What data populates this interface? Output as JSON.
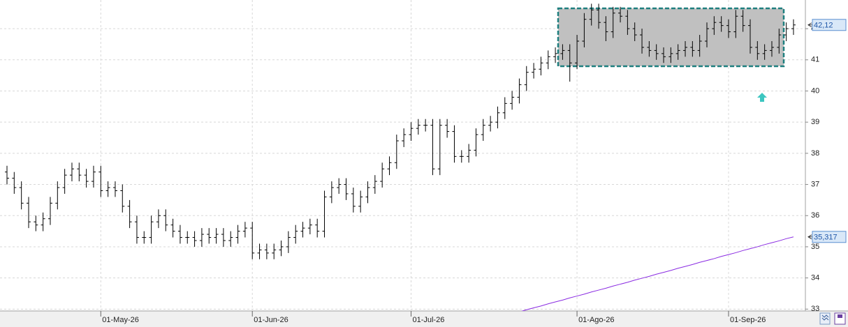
{
  "chart_data": {
    "type": "ohlc",
    "color": "#000000",
    "ma_color": "#8a2be2",
    "categories": [
      null,
      null,
      null,
      null,
      null,
      null,
      null,
      null,
      null,
      null,
      null,
      null,
      null,
      "01-May-26",
      null,
      null,
      null,
      null,
      null,
      null,
      null,
      null,
      null,
      null,
      null,
      null,
      null,
      null,
      null,
      null,
      null,
      null,
      null,
      null,
      "01-Jun-26",
      null,
      null,
      null,
      null,
      null,
      null,
      null,
      null,
      null,
      null,
      null,
      null,
      null,
      null,
      null,
      null,
      null,
      null,
      null,
      null,
      null,
      "01-Jul-26",
      null,
      null,
      null,
      null,
      null,
      null,
      null,
      null,
      null,
      null,
      null,
      null,
      null,
      null,
      null,
      null,
      null,
      null,
      null,
      null,
      null,
      null,
      "01-Ago-26",
      null,
      null,
      null,
      null,
      null,
      null,
      null,
      null,
      null,
      null,
      null,
      null,
      null,
      null,
      null,
      null,
      null,
      null,
      null,
      null,
      "01-Sep-26",
      null,
      null,
      null,
      null,
      null,
      null,
      null,
      null,
      null
    ],
    "open": [
      37.4,
      37.2,
      36.9,
      36.4,
      35.8,
      35.7,
      35.9,
      36.4,
      36.9,
      37.3,
      37.5,
      37.3,
      37.1,
      37.4,
      36.8,
      36.9,
      36.8,
      36.3,
      35.8,
      35.3,
      35.3,
      35.8,
      36.0,
      35.7,
      35.5,
      35.3,
      35.3,
      35.2,
      35.4,
      35.3,
      35.4,
      35.2,
      35.3,
      35.5,
      35.6,
      34.8,
      34.9,
      34.8,
      34.9,
      35.0,
      35.3,
      35.5,
      35.6,
      35.7,
      35.5,
      36.6,
      36.9,
      37.0,
      36.7,
      36.3,
      36.6,
      36.9,
      37.1,
      37.5,
      37.7,
      38.4,
      38.6,
      38.8,
      38.9,
      38.9,
      37.5,
      38.9,
      38.7,
      37.9,
      37.9,
      38.1,
      38.6,
      38.9,
      39.0,
      39.3,
      39.6,
      39.8,
      40.2,
      40.6,
      40.7,
      40.9,
      41.1,
      41.2,
      41.3,
      40.9,
      41.6,
      42.3,
      42.6,
      42.2,
      41.9,
      42.5,
      42.4,
      42.0,
      41.8,
      41.4,
      41.3,
      41.2,
      41.1,
      41.2,
      41.3,
      41.4,
      41.3,
      41.6,
      42.0,
      42.2,
      42.1,
      41.9,
      42.4,
      42.1,
      41.4,
      41.2,
      41.3,
      41.4,
      41.8,
      42.0
    ],
    "high": [
      37.6,
      37.4,
      37.1,
      36.6,
      36.0,
      36.1,
      36.6,
      37.1,
      37.5,
      37.7,
      37.7,
      37.5,
      37.6,
      37.6,
      37.1,
      37.1,
      37.0,
      36.5,
      36.0,
      35.5,
      36.0,
      36.2,
      36.2,
      35.9,
      35.7,
      35.5,
      35.5,
      35.6,
      35.6,
      35.6,
      35.6,
      35.5,
      35.7,
      35.8,
      35.8,
      35.1,
      35.1,
      35.1,
      35.2,
      35.5,
      35.7,
      35.8,
      35.9,
      35.9,
      36.8,
      37.1,
      37.2,
      37.2,
      36.9,
      36.8,
      37.1,
      37.3,
      37.7,
      37.9,
      38.6,
      38.8,
      39.0,
      39.1,
      39.1,
      39.1,
      39.1,
      39.1,
      38.9,
      38.1,
      38.3,
      38.8,
      39.1,
      39.2,
      39.5,
      39.8,
      40.0,
      40.4,
      40.8,
      40.9,
      41.1,
      41.3,
      41.4,
      41.5,
      41.5,
      41.8,
      42.5,
      42.8,
      42.8,
      42.4,
      42.7,
      42.7,
      42.6,
      42.2,
      42.0,
      41.6,
      41.5,
      41.4,
      41.4,
      41.5,
      41.6,
      41.6,
      41.8,
      42.2,
      42.4,
      42.4,
      42.3,
      42.6,
      42.6,
      42.3,
      41.6,
      41.5,
      41.6,
      42.0,
      42.2,
      42.3
    ],
    "low": [
      37.0,
      36.7,
      36.2,
      35.6,
      35.5,
      35.5,
      35.7,
      36.2,
      36.7,
      37.1,
      37.1,
      36.9,
      36.9,
      36.6,
      36.6,
      36.6,
      36.1,
      35.6,
      35.1,
      35.1,
      35.1,
      35.6,
      35.5,
      35.3,
      35.1,
      35.1,
      35.0,
      35.0,
      35.1,
      35.1,
      35.0,
      35.0,
      35.1,
      35.3,
      34.6,
      34.6,
      34.6,
      34.6,
      34.7,
      34.8,
      35.1,
      35.3,
      35.4,
      35.3,
      35.3,
      36.4,
      36.7,
      36.5,
      36.1,
      36.1,
      36.4,
      36.7,
      36.9,
      37.3,
      37.5,
      38.2,
      38.4,
      38.6,
      38.7,
      37.3,
      37.3,
      38.5,
      37.7,
      37.7,
      37.7,
      37.9,
      38.4,
      38.7,
      38.8,
      39.1,
      39.4,
      39.6,
      40.0,
      40.4,
      40.5,
      40.7,
      40.9,
      41.0,
      40.3,
      40.7,
      41.4,
      42.1,
      42.0,
      41.6,
      41.7,
      42.2,
      41.8,
      41.6,
      41.2,
      41.1,
      41.0,
      40.9,
      40.9,
      41.0,
      41.1,
      41.1,
      41.1,
      41.4,
      41.8,
      41.9,
      41.7,
      41.7,
      41.9,
      41.2,
      41.0,
      41.0,
      41.1,
      41.2,
      41.6,
      41.8
    ],
    "close": [
      37.2,
      36.9,
      36.4,
      35.8,
      35.7,
      35.9,
      36.4,
      36.9,
      37.3,
      37.5,
      37.3,
      37.1,
      37.4,
      36.8,
      36.9,
      36.8,
      36.3,
      35.8,
      35.3,
      35.3,
      35.8,
      36.0,
      35.7,
      35.5,
      35.3,
      35.3,
      35.2,
      35.4,
      35.3,
      35.4,
      35.2,
      35.3,
      35.5,
      35.6,
      34.8,
      34.9,
      34.8,
      34.9,
      35.0,
      35.3,
      35.5,
      35.6,
      35.7,
      35.5,
      36.6,
      36.9,
      37.0,
      36.7,
      36.3,
      36.6,
      36.9,
      37.1,
      37.5,
      37.7,
      38.4,
      38.6,
      38.8,
      38.9,
      38.9,
      37.5,
      38.9,
      38.7,
      37.9,
      37.9,
      38.1,
      38.6,
      38.9,
      39.0,
      39.3,
      39.6,
      39.8,
      40.2,
      40.6,
      40.7,
      40.9,
      41.1,
      41.2,
      41.3,
      40.9,
      41.6,
      42.3,
      42.6,
      42.2,
      41.9,
      42.5,
      42.4,
      42.0,
      41.8,
      41.4,
      41.3,
      41.2,
      41.1,
      41.2,
      41.3,
      41.4,
      41.3,
      41.6,
      42.0,
      42.2,
      42.1,
      41.9,
      42.4,
      42.1,
      41.4,
      41.2,
      41.3,
      41.4,
      41.8,
      42.0,
      42.12
    ],
    "ma": [
      null,
      null,
      null,
      null,
      null,
      null,
      null,
      null,
      null,
      null,
      null,
      null,
      null,
      null,
      null,
      null,
      null,
      null,
      null,
      null,
      null,
      null,
      null,
      null,
      null,
      null,
      null,
      null,
      null,
      null,
      null,
      null,
      null,
      null,
      null,
      null,
      null,
      null,
      null,
      null,
      null,
      null,
      null,
      null,
      null,
      null,
      null,
      null,
      null,
      null,
      null,
      null,
      null,
      null,
      null,
      null,
      null,
      null,
      null,
      null,
      null,
      null,
      null,
      null,
      null,
      null,
      null,
      null,
      null,
      null,
      32.85,
      32.91,
      32.98,
      33.04,
      33.1,
      33.17,
      33.23,
      33.29,
      33.36,
      33.42,
      33.48,
      33.55,
      33.61,
      33.67,
      33.74,
      33.8,
      33.86,
      33.93,
      33.99,
      34.05,
      34.12,
      34.18,
      34.24,
      34.31,
      34.37,
      34.43,
      34.5,
      34.56,
      34.62,
      34.69,
      34.75,
      34.81,
      34.88,
      34.94,
      35.0,
      35.07,
      35.13,
      35.19,
      35.26,
      35.317
    ],
    "last_price": {
      "value": 42.12,
      "label": "42,12"
    },
    "ma_last": {
      "value": 35.317,
      "label": "35,317"
    },
    "ylim": [
      32.94,
      42.92
    ],
    "yticks": [
      33,
      34,
      35,
      36,
      37,
      38,
      39,
      40,
      41,
      42
    ],
    "grid": true
  }
}
